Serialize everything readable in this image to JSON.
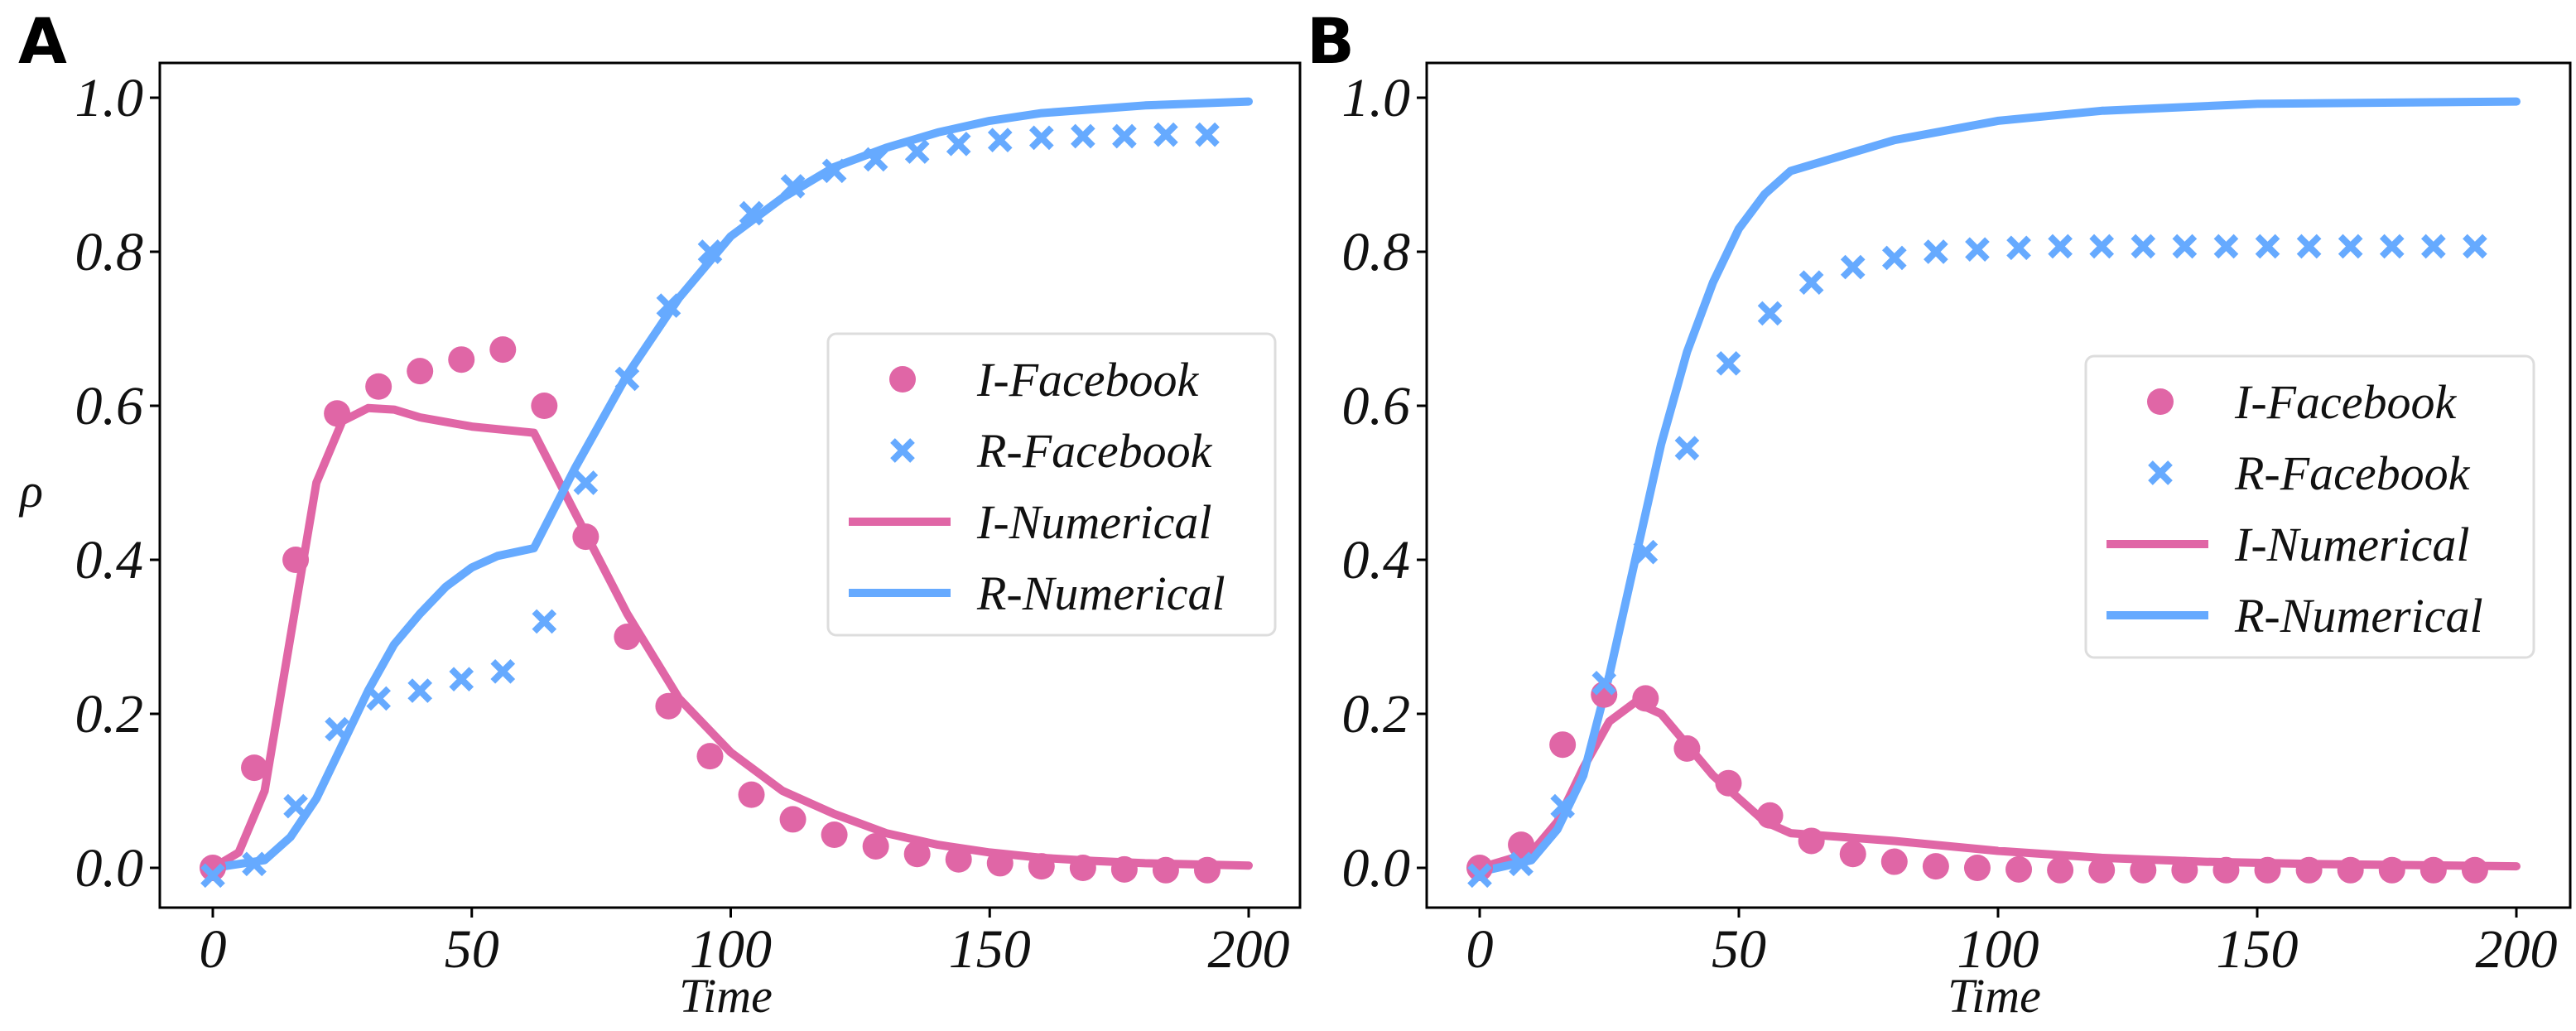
{
  "colors": {
    "I": "#E066A6",
    "R": "#66AAFF"
  },
  "chart_data": [
    {
      "type": "line",
      "panel_label": "A",
      "xlabel": "Time",
      "ylabel": "ρ",
      "xlim": [
        -10,
        205
      ],
      "ylim": [
        -0.045,
        1.045
      ],
      "xticks": [
        "0",
        "50",
        "100",
        "150",
        "200"
      ],
      "xtick_values": [
        0,
        50,
        100,
        150,
        200
      ],
      "yticks": [
        "0.0",
        "0.2",
        "0.4",
        "0.6",
        "0.8",
        "1.0"
      ],
      "ytick_values": [
        0,
        0.2,
        0.4,
        0.6,
        0.8,
        1.0
      ],
      "legend_position": "center-right",
      "series": [
        {
          "name": "I-Facebook",
          "kind": "scatter-circle",
          "color_key": "I",
          "x": [
            0,
            8,
            16,
            24,
            32,
            40,
            48,
            56,
            64,
            72,
            80,
            88,
            96,
            104,
            112,
            120,
            128,
            136,
            144,
            152,
            160,
            168,
            176,
            184,
            192
          ],
          "y": [
            0.0,
            0.13,
            0.4,
            0.59,
            0.625,
            0.645,
            0.66,
            0.673,
            0.6,
            0.43,
            0.3,
            0.21,
            0.145,
            0.095,
            0.063,
            0.043,
            0.028,
            0.018,
            0.011,
            0.006,
            0.002,
            0.0,
            -0.002,
            -0.003,
            -0.003
          ]
        },
        {
          "name": "R-Facebook",
          "kind": "scatter-x",
          "color_key": "R",
          "x": [
            0,
            8,
            16,
            24,
            32,
            40,
            48,
            56,
            64,
            72,
            80,
            88,
            96,
            104,
            112,
            120,
            128,
            136,
            144,
            152,
            160,
            168,
            176,
            184,
            192
          ],
          "y": [
            -0.01,
            0.005,
            0.08,
            0.18,
            0.22,
            0.23,
            0.245,
            0.255,
            0.32,
            0.5,
            0.635,
            0.73,
            0.8,
            0.85,
            0.885,
            0.905,
            0.92,
            0.93,
            0.94,
            0.945,
            0.948,
            0.95,
            0.95,
            0.952,
            0.952
          ]
        },
        {
          "name": "I-Numerical",
          "kind": "line",
          "color_key": "I",
          "x": [
            0,
            5,
            10,
            15,
            20,
            25,
            30,
            35,
            40,
            50,
            62,
            70,
            80,
            90,
            100,
            110,
            120,
            130,
            140,
            150,
            160,
            170,
            180,
            200
          ],
          "y": [
            0,
            0.02,
            0.1,
            0.3,
            0.5,
            0.58,
            0.597,
            0.595,
            0.585,
            0.573,
            0.565,
            0.46,
            0.33,
            0.22,
            0.15,
            0.1,
            0.07,
            0.045,
            0.03,
            0.02,
            0.013,
            0.009,
            0.006,
            0.003
          ]
        },
        {
          "name": "R-Numerical",
          "kind": "line",
          "color_key": "R",
          "x": [
            0,
            10,
            15,
            20,
            25,
            30,
            35,
            40,
            45,
            50,
            55,
            62,
            70,
            80,
            90,
            100,
            110,
            120,
            130,
            140,
            150,
            160,
            180,
            200
          ],
          "y": [
            0,
            0.01,
            0.04,
            0.09,
            0.16,
            0.23,
            0.29,
            0.33,
            0.365,
            0.39,
            0.405,
            0.415,
            0.52,
            0.64,
            0.74,
            0.82,
            0.87,
            0.91,
            0.935,
            0.955,
            0.97,
            0.98,
            0.99,
            0.995
          ]
        }
      ]
    },
    {
      "type": "line",
      "panel_label": "B",
      "xlabel": "Time",
      "ylabel": "",
      "xlim": [
        -10,
        205
      ],
      "ylim": [
        -0.045,
        1.045
      ],
      "xticks": [
        "0",
        "50",
        "100",
        "150",
        "200"
      ],
      "xtick_values": [
        0,
        50,
        100,
        150,
        200
      ],
      "yticks": [
        "0.0",
        "0.2",
        "0.4",
        "0.6",
        "0.8",
        "1.0"
      ],
      "ytick_values": [
        0,
        0.2,
        0.4,
        0.6,
        0.8,
        1.0
      ],
      "legend_position": "center-right",
      "series": [
        {
          "name": "I-Facebook",
          "kind": "scatter-circle",
          "color_key": "I",
          "x": [
            0,
            8,
            16,
            24,
            32,
            40,
            48,
            56,
            64,
            72,
            80,
            88,
            96,
            104,
            112,
            120,
            128,
            136,
            144,
            152,
            160,
            168,
            176,
            184,
            192
          ],
          "y": [
            0.0,
            0.03,
            0.16,
            0.225,
            0.22,
            0.155,
            0.11,
            0.068,
            0.035,
            0.018,
            0.008,
            0.002,
            0.0,
            -0.002,
            -0.003,
            -0.003,
            -0.003,
            -0.003,
            -0.003,
            -0.003,
            -0.003,
            -0.003,
            -0.003,
            -0.003,
            -0.003
          ]
        },
        {
          "name": "R-Facebook",
          "kind": "scatter-x",
          "color_key": "R",
          "x": [
            0,
            8,
            16,
            24,
            32,
            40,
            48,
            56,
            64,
            72,
            80,
            88,
            96,
            104,
            112,
            120,
            128,
            136,
            144,
            152,
            160,
            168,
            176,
            184,
            192
          ],
          "y": [
            -0.01,
            0.005,
            0.08,
            0.24,
            0.41,
            0.545,
            0.655,
            0.72,
            0.76,
            0.78,
            0.792,
            0.8,
            0.803,
            0.805,
            0.807,
            0.807,
            0.807,
            0.807,
            0.807,
            0.807,
            0.807,
            0.807,
            0.807,
            0.807,
            0.807
          ]
        },
        {
          "name": "I-Numerical",
          "kind": "line",
          "color_key": "I",
          "x": [
            0,
            10,
            15,
            20,
            25,
            30,
            35,
            40,
            45,
            50,
            55,
            60,
            80,
            100,
            120,
            140,
            160,
            200
          ],
          "y": [
            0,
            0.02,
            0.06,
            0.13,
            0.19,
            0.215,
            0.2,
            0.16,
            0.12,
            0.09,
            0.06,
            0.045,
            0.035,
            0.022,
            0.013,
            0.008,
            0.005,
            0.002
          ]
        },
        {
          "name": "R-Numerical",
          "kind": "line",
          "color_key": "R",
          "x": [
            0,
            10,
            15,
            20,
            25,
            30,
            35,
            40,
            45,
            50,
            55,
            60,
            80,
            100,
            120,
            150,
            200
          ],
          "y": [
            -0.005,
            0.01,
            0.05,
            0.12,
            0.25,
            0.4,
            0.55,
            0.67,
            0.76,
            0.83,
            0.875,
            0.905,
            0.945,
            0.97,
            0.983,
            0.992,
            0.995
          ]
        }
      ]
    }
  ]
}
